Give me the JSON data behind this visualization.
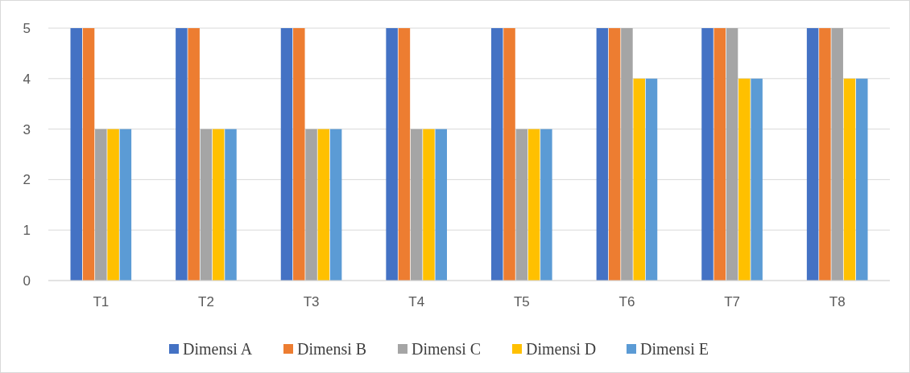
{
  "chart_data": {
    "type": "bar",
    "categories": [
      "T1",
      "T2",
      "T3",
      "T4",
      "T5",
      "T6",
      "T7",
      "T8"
    ],
    "series": [
      {
        "name": "Dimensi A",
        "color": "#4472c4",
        "values": [
          5,
          5,
          5,
          5,
          5,
          5,
          5,
          5
        ]
      },
      {
        "name": "Dimensi B",
        "color": "#ed7d31",
        "values": [
          5,
          5,
          5,
          5,
          5,
          5,
          5,
          5
        ]
      },
      {
        "name": "Dimensi C",
        "color": "#a5a5a5",
        "values": [
          3,
          3,
          3,
          3,
          3,
          5,
          5,
          5
        ]
      },
      {
        "name": "Dimensi D",
        "color": "#ffc000",
        "values": [
          3,
          3,
          3,
          3,
          3,
          4,
          4,
          4
        ]
      },
      {
        "name": "Dimensi E",
        "color": "#5b9bd5",
        "values": [
          3,
          3,
          3,
          3,
          3,
          4,
          4,
          4
        ]
      }
    ],
    "ylim": [
      0,
      5
    ],
    "yticks": [
      0,
      1,
      2,
      3,
      4,
      5
    ],
    "grid": "y",
    "legend": "bottom"
  }
}
